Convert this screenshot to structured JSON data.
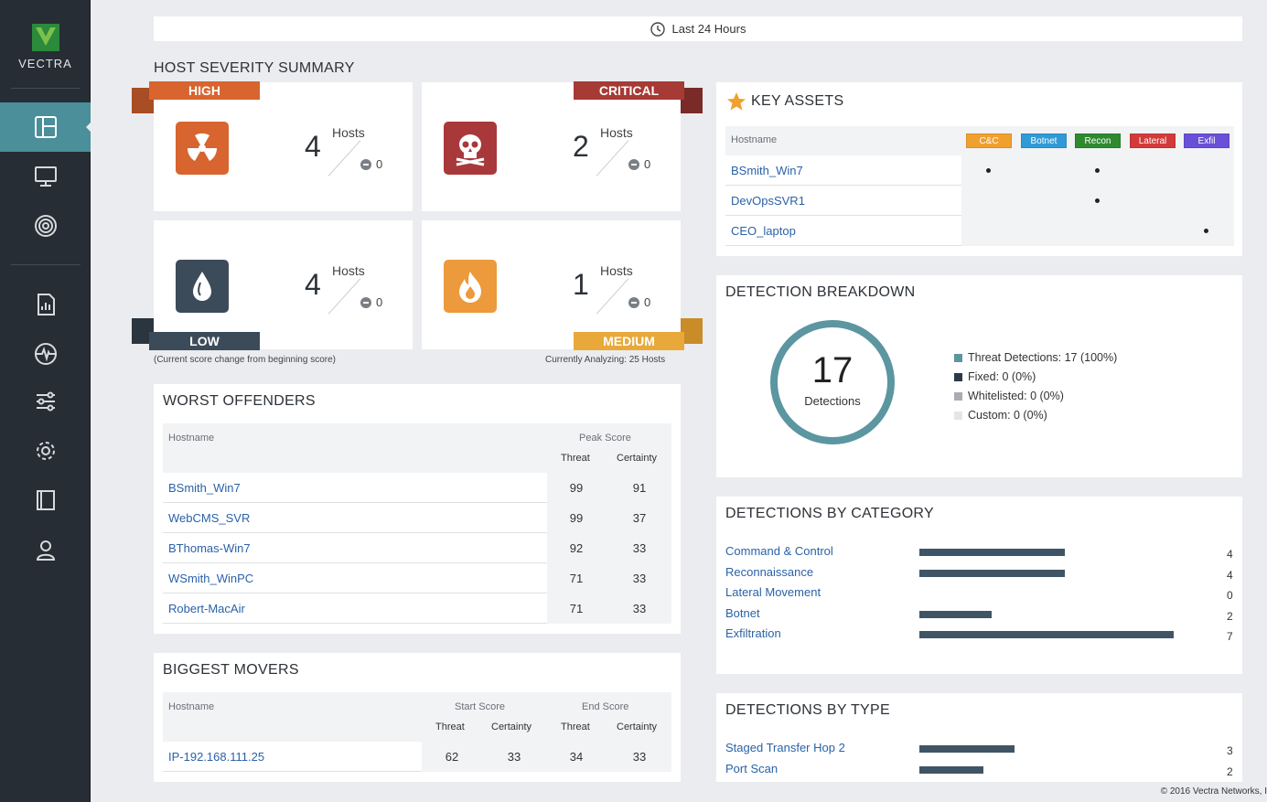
{
  "app": {
    "logo_text": "VECTRA"
  },
  "time_filter": {
    "label": "Last 24 Hours"
  },
  "host_severity": {
    "title": "HOST SEVERITY SUMMARY",
    "tiles": [
      {
        "label": "HIGH",
        "count": "4",
        "hosts_label": "Hosts",
        "change": "0",
        "color": "#d0642f"
      },
      {
        "label": "CRITICAL",
        "count": "2",
        "hosts_label": "Hosts",
        "change": "0",
        "color": "#a63a35"
      },
      {
        "label": "LOW",
        "count": "4",
        "hosts_label": "Hosts",
        "change": "0",
        "color": "#3c4b59"
      },
      {
        "label": "MEDIUM",
        "count": "1",
        "hosts_label": "Hosts",
        "change": "0",
        "color": "#e8a93a"
      }
    ],
    "note_left": "(Current score change from beginning score)",
    "note_right": "Currently Analyzing: 25 Hosts"
  },
  "worst_offenders": {
    "title": "WORST OFFENDERS",
    "col_hostname": "Hostname",
    "col_peak": "Peak Score",
    "col_threat": "Threat",
    "col_certainty": "Certainty",
    "rows": [
      {
        "host": "BSmith_Win7",
        "threat": "99",
        "certainty": "91"
      },
      {
        "host": "WebCMS_SVR",
        "threat": "99",
        "certainty": "37"
      },
      {
        "host": "BThomas-Win7",
        "threat": "92",
        "certainty": "33"
      },
      {
        "host": "WSmith_WinPC",
        "threat": "71",
        "certainty": "33"
      },
      {
        "host": "Robert-MacAir",
        "threat": "71",
        "certainty": "33"
      }
    ]
  },
  "biggest_movers": {
    "title": "BIGGEST MOVERS",
    "col_hostname": "Hostname",
    "col_start": "Start Score",
    "col_end": "End Score",
    "col_threat": "Threat",
    "col_certainty": "Certainty",
    "rows": [
      {
        "host": "IP-192.168.111.25",
        "start_threat": "62",
        "start_certainty": "33",
        "end_threat": "34",
        "end_certainty": "33"
      }
    ]
  },
  "key_assets": {
    "title": "KEY ASSETS",
    "col_hostname": "Hostname",
    "badges": [
      {
        "label": "C&C",
        "color": "#f0a02e"
      },
      {
        "label": "Botnet",
        "color": "#2f9ad6"
      },
      {
        "label": "Recon",
        "color": "#2f8a2f"
      },
      {
        "label": "Lateral",
        "color": "#d43a3a"
      },
      {
        "label": "Exfil",
        "color": "#6a4fd8"
      }
    ],
    "rows": [
      {
        "host": "BSmith_Win7",
        "marks": [
          true,
          false,
          true,
          false,
          false
        ]
      },
      {
        "host": "DevOpsSVR1",
        "marks": [
          false,
          false,
          true,
          false,
          false
        ]
      },
      {
        "host": "CEO_laptop",
        "marks": [
          false,
          false,
          false,
          false,
          true
        ]
      }
    ]
  },
  "detection_breakdown": {
    "title": "DETECTION BREAKDOWN",
    "total": "17",
    "total_label": "Detections",
    "legend": [
      {
        "label": "Threat Detections: 17 (100%)",
        "color": "#5b96a1"
      },
      {
        "label": "Fixed: 0 (0%)",
        "color": "#2d3a45"
      },
      {
        "label": "Whitelisted: 0 (0%)",
        "color": "#a9adb1"
      },
      {
        "label": "Custom: 0 (0%)",
        "color": "#e3e5e7"
      }
    ]
  },
  "detections_by_category": {
    "title": "DETECTIONS BY CATEGORY",
    "items": [
      {
        "label": "Command & Control",
        "value": "4"
      },
      {
        "label": "Reconnaissance",
        "value": "4"
      },
      {
        "label": "Lateral Movement",
        "value": "0"
      },
      {
        "label": "Botnet",
        "value": "2"
      },
      {
        "label": "Exfiltration",
        "value": "7"
      }
    ],
    "max": 7
  },
  "detections_by_type": {
    "title": "DETECTIONS BY TYPE",
    "items": [
      {
        "label": "Staged Transfer Hop 2",
        "value": "3"
      },
      {
        "label": "Port Scan",
        "value": "2"
      }
    ],
    "max": 8
  },
  "footer": {
    "copyright": "© 2016 Vectra Networks, I"
  }
}
